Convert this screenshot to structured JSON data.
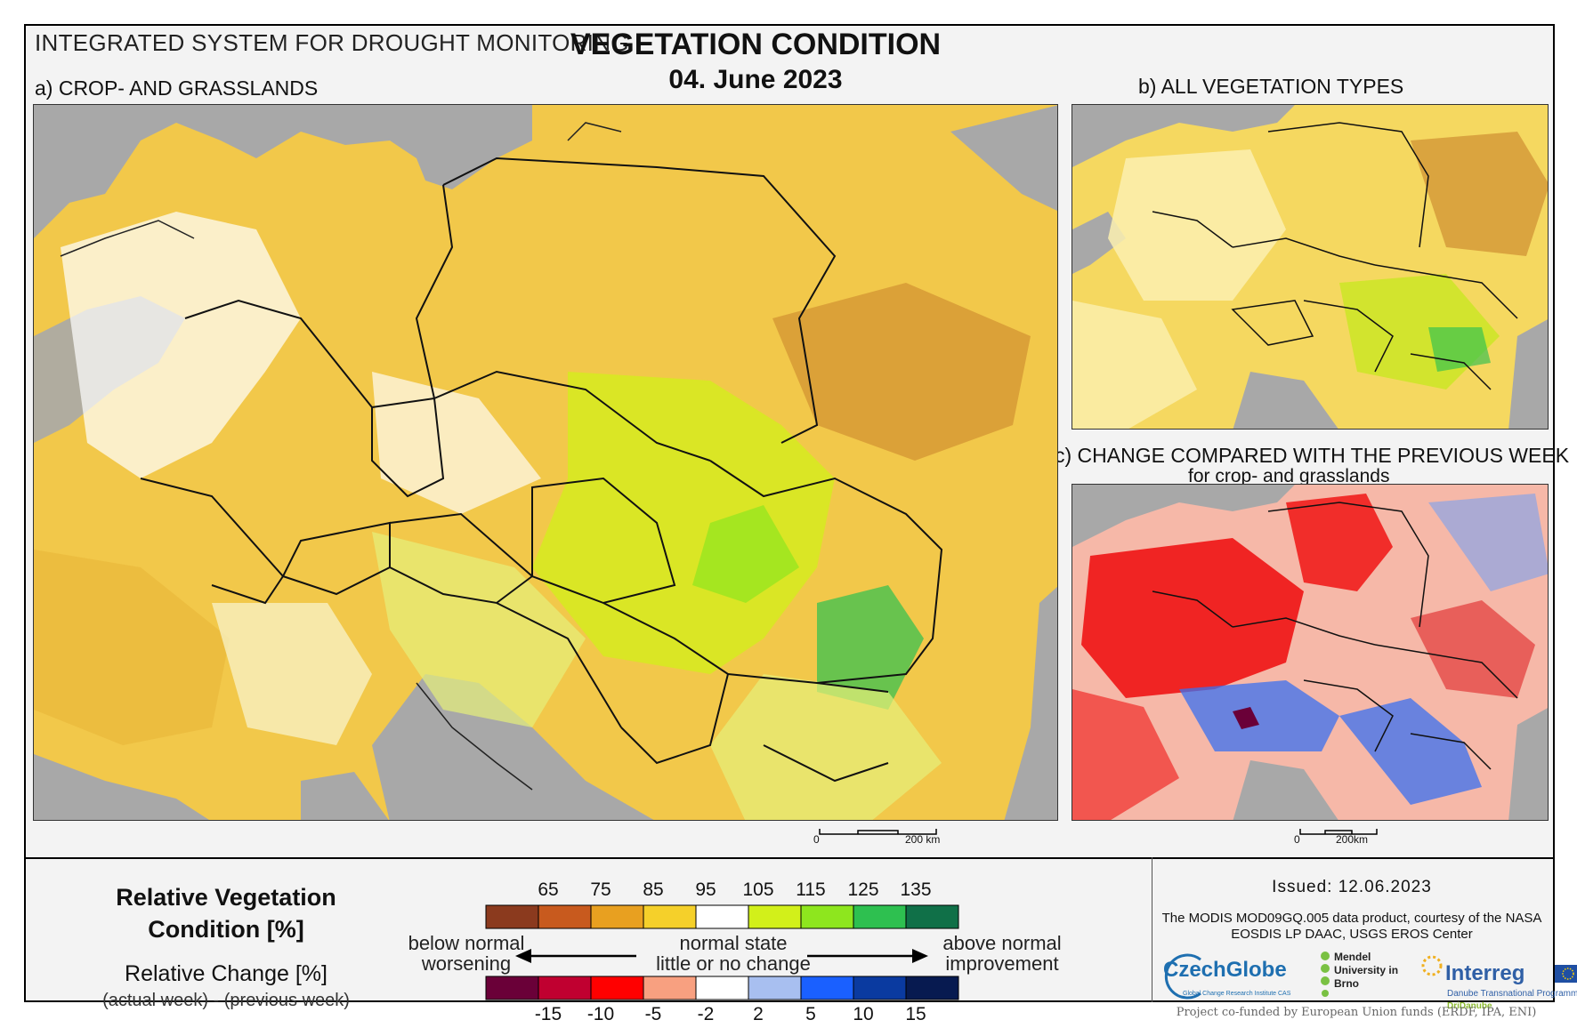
{
  "header": {
    "system_title": "INTEGRATED SYSTEM FOR DROUGHT MONITORING",
    "main_title": "VEGETATION CONDITION",
    "date": "04. June 2023"
  },
  "panels": {
    "a": {
      "label": "a) CROP- AND GRASSLANDS",
      "scale_zero": "0",
      "scale_end": "200 km"
    },
    "b": {
      "label": "b) ALL VEGETATION TYPES"
    },
    "c": {
      "label": "c) CHANGE COMPARED WITH THE PREVIOUS WEEK",
      "sublabel": "for crop- and grasslands",
      "scale_zero": "0",
      "scale_end": "200km"
    }
  },
  "legend": {
    "rvc_title": "Relative Vegetation Condition [%]",
    "rc_title": "Relative Change [%]",
    "rc_subtitle": "(actual week) - (previous week)",
    "rvc_labels": [
      "65",
      "75",
      "85",
      "95",
      "105",
      "115",
      "125",
      "135"
    ],
    "rvc_colors": [
      "#8b3a1e",
      "#c85a1e",
      "#e8a020",
      "#f5d02a",
      "#ffffff",
      "#d2f01a",
      "#8ee61e",
      "#2ec050",
      "#107048"
    ],
    "rc_labels": [
      "-15",
      "-10",
      "-5",
      "-2",
      "2",
      "5",
      "10",
      "15"
    ],
    "rc_colors": [
      "#6a0038",
      "#c00030",
      "#ff0000",
      "#f8a080",
      "#ffffff",
      "#a8bff0",
      "#1a60ff",
      "#0a3aa0",
      "#071a50"
    ],
    "below_normal": "below normal",
    "worsening": "worsening",
    "normal_state": "normal state",
    "little_change": "little or no change",
    "above_normal": "above normal",
    "improvement": "improvement"
  },
  "footer": {
    "issued": "Issued: 12.06.2023",
    "credit": "The MODIS MOD09GQ.005 data product, courtesy of the NASA EOSDIS LP DAAC, USGS EROS Center",
    "logo_czechglobe": "CzechGlobe",
    "logo_czechglobe_sub": "Global Change Research Institute CAS",
    "logo_mendel": "Mendel University in Brno",
    "logo_interreg": "Interreg",
    "logo_interreg_sub1": "Danube Transnational Programme",
    "logo_interreg_sub2": "DriDanube",
    "funded": "Project co-funded by European Union funds (ERDF, IPA, ENI)"
  }
}
